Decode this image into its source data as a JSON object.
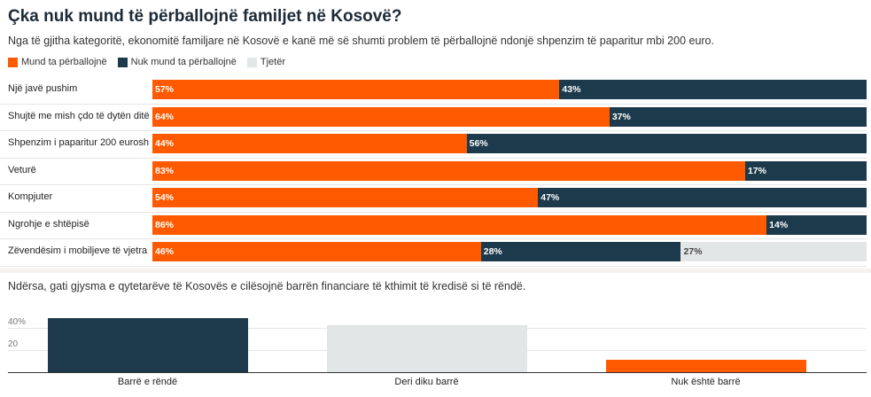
{
  "header": {
    "title": "Çka nuk mund të përballojnë familjet në Kosovë?",
    "subtitle": "Nga të gjitha kategoritë, ekonomitë familjare në Kosovë e kanë më së shumti problem të përballojnë ndonjë shpenzim të paparitur mbi 200 euro."
  },
  "colors": {
    "orange": "#ff5a00",
    "navy": "#1c3a4b",
    "gray": "#e3e6e6"
  },
  "chart_data": [
    {
      "type": "bar",
      "orientation": "horizontal",
      "stacked": true,
      "title": "Çka nuk mund të përballojnë familjet në Kosovë?",
      "categories": [
        "Një javë pushim",
        "Shujtë me mish çdo të dytën ditë",
        "Shpenzim i paparitur 200 eurosh",
        "Veturë",
        "Kompjuter",
        "Ngrohje e shtëpisë",
        "Zëvendësim i mobiljeve të vjetra"
      ],
      "series": [
        {
          "name": "Mund ta përballojnë",
          "color": "#ff5a00",
          "label_color": "#ffffff",
          "values": [
            57,
            64,
            44,
            83,
            54,
            86,
            46
          ],
          "labels": [
            "57%",
            "64%",
            "44%",
            "83%",
            "54%",
            "86%",
            "46%"
          ]
        },
        {
          "name": "Nuk mund ta përballojnë",
          "color": "#1c3a4b",
          "label_color": "#ffffff",
          "values": [
            43,
            37,
            56,
            17,
            47,
            14,
            28
          ],
          "labels": [
            "43%",
            "37%",
            "56%",
            "17%",
            "47%",
            "14%",
            "28%"
          ]
        },
        {
          "name": "Tjetër",
          "color": "#e3e6e6",
          "label_color": "#444444",
          "values": [
            0,
            0,
            0,
            0,
            0,
            0,
            27
          ],
          "labels": [
            "",
            "",
            "",
            "",
            "",
            "",
            "27%"
          ]
        }
      ]
    },
    {
      "type": "bar",
      "title": "Ndërsa, gati gjysma e qytetarëve të Kosovës e cilësojnë barrën financiare të kthimit të kredisë si të rëndë.",
      "categories": [
        "Barrë e rëndë",
        "Deri diku barrë",
        "Nuk është barrë"
      ],
      "values": [
        49,
        43,
        11
      ],
      "colors": [
        "#1c3a4b",
        "#e3e6e6",
        "#ff5a00"
      ],
      "yticks": [
        {
          "value": 40,
          "label": "40%"
        },
        {
          "value": 20,
          "label": "20"
        }
      ],
      "ylim": [
        0,
        50
      ]
    }
  ]
}
